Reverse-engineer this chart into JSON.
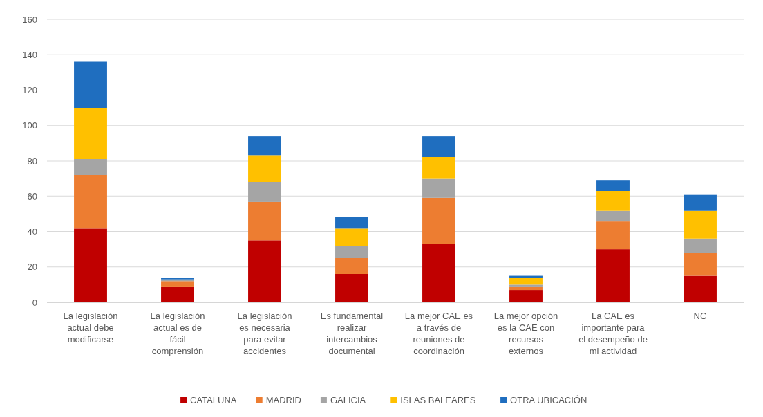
{
  "chart_data": {
    "type": "bar",
    "stacked": true,
    "categories": [
      "La legislación actual debe modificarse",
      "La legislación actual es de fácil comprensión",
      "La legislación es necesaria para evitar accidentes",
      "Es fundamental realizar intercambios documental",
      "La mejor CAE es a través de reuniones de coordinación",
      "La mejor opción es la CAE con recursos externos",
      "La CAE es importante para el desempeño de mi actividad",
      "NC"
    ],
    "series": [
      {
        "name": "CATALUÑA",
        "color": "#c00000",
        "values": [
          42,
          9,
          35,
          16,
          33,
          7,
          30,
          15
        ]
      },
      {
        "name": "MADRID",
        "color": "#ed7d31",
        "values": [
          30,
          3,
          22,
          9,
          26,
          2,
          16,
          13
        ]
      },
      {
        "name": "GALICIA",
        "color": "#a5a5a5",
        "values": [
          9,
          1,
          11,
          7,
          11,
          1,
          6,
          8
        ]
      },
      {
        "name": "ISLAS BALEARES",
        "color": "#ffc000",
        "values": [
          29,
          0,
          15,
          10,
          12,
          4,
          11,
          16
        ]
      },
      {
        "name": "OTRA UBICACIÓN",
        "color": "#1f6ebf",
        "values": [
          26,
          1,
          11,
          6,
          12,
          1,
          6,
          9
        ]
      }
    ],
    "ylim": [
      0,
      160
    ],
    "yticks": [
      0,
      20,
      40,
      60,
      80,
      100,
      120,
      140,
      160
    ],
    "grid": "y",
    "legend": "bottom"
  }
}
